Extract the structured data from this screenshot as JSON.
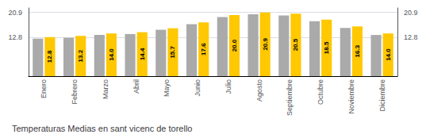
{
  "chart_data": {
    "type": "bar",
    "title": "Temperaturas Medias en sant vicenc de torello",
    "categories": [
      "Enero",
      "Febrero",
      "Marzo",
      "Abril",
      "Mayo",
      "Junio",
      "Julio",
      "Agosto",
      "Septiembre",
      "Octubre",
      "Noviembre",
      "Diciembre"
    ],
    "series": [
      {
        "color": "#AAAAAA",
        "values": [
          12.3,
          12.6,
          13.5,
          13.8,
          15.2,
          17.0,
          19.4,
          20.3,
          19.9,
          18.0,
          15.8,
          13.5
        ]
      },
      {
        "color": "#FFC800",
        "values": [
          12.8,
          13.2,
          14.0,
          14.4,
          15.7,
          17.6,
          20.0,
          20.9,
          20.5,
          18.5,
          16.3,
          14.0
        ],
        "value_labels": [
          "12.8",
          "13.2",
          "14.0",
          "14.4",
          "15.7",
          "17.6",
          "20.0",
          "20.9",
          "20.5",
          "18.5",
          "16.3",
          "14.0"
        ]
      }
    ],
    "ylim": [
      0,
      22.363
    ],
    "yticks": [
      12.8,
      20.9
    ],
    "y2lim": [
      0,
      22.363
    ],
    "y2ticks": [
      12.8,
      20.9
    ],
    "grid": true
  }
}
